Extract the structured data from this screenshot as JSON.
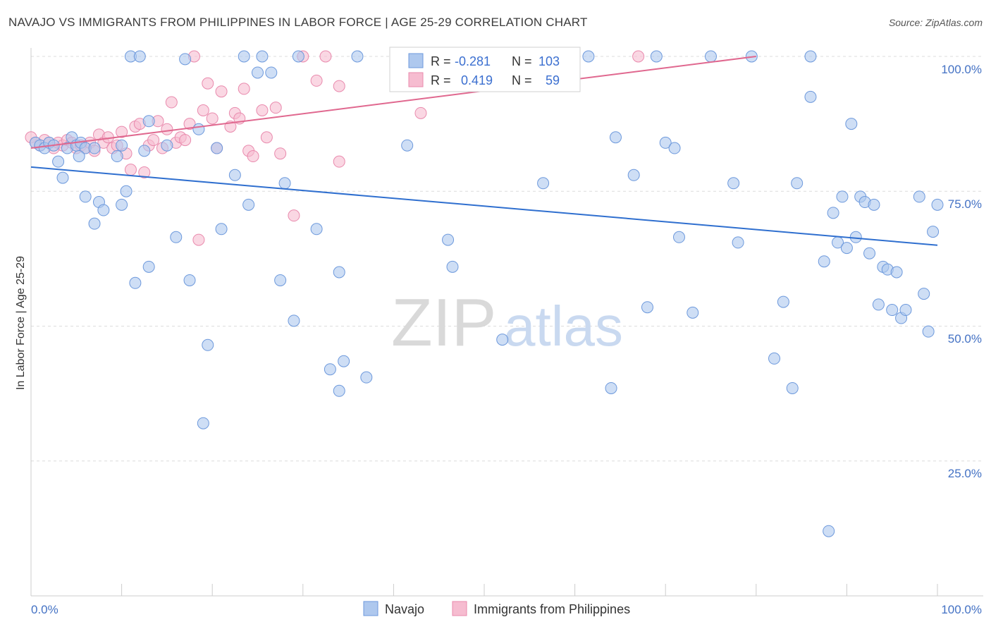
{
  "title": "NAVAJO VS IMMIGRANTS FROM PHILIPPINES IN LABOR FORCE | AGE 25-29 CORRELATION CHART",
  "source": "Source: ZipAtlas.com",
  "watermark": {
    "zip": "ZIP",
    "atlas": "atlas"
  },
  "colors": {
    "navajo_fill": "#aec8ee",
    "navajo_stroke": "#6d99dc",
    "navajo_line": "#2f6fcf",
    "phil_fill": "#f6bcd0",
    "phil_stroke": "#e98aad",
    "phil_line": "#e0688f",
    "tick_text": "#4472c4",
    "grid": "#dcdcdc"
  },
  "legend": {
    "navajo": {
      "r_label": "R =",
      "r_value": "-0.281",
      "n_label": "N =",
      "n_value": "103"
    },
    "philippines": {
      "r_label": "R =",
      "r_value": "0.419",
      "n_label": "N =",
      "n_value": "59"
    }
  },
  "chart_data": {
    "type": "scatter",
    "xlabel": "",
    "ylabel": "In Labor Force | Age 25-29",
    "xlim": [
      0,
      100
    ],
    "ylim": [
      0,
      100
    ],
    "x_tick_labels": [
      "0.0%",
      "100.0%"
    ],
    "y_tick_labels": [
      "100.0%",
      "75.0%",
      "50.0%",
      "25.0%"
    ],
    "y_ticks": [
      100,
      75,
      50,
      25
    ],
    "grid": "horizontal dashed",
    "legend_position": "top-center",
    "series": [
      {
        "name": "Navajo",
        "trend": {
          "x": [
            0,
            100
          ],
          "y": [
            79.5,
            65.0
          ]
        },
        "points": [
          [
            0.5,
            84
          ],
          [
            1,
            83.5
          ],
          [
            1.5,
            83
          ],
          [
            2,
            84
          ],
          [
            2.5,
            83.5
          ],
          [
            3,
            80.5
          ],
          [
            3.5,
            77.5
          ],
          [
            4,
            83
          ],
          [
            4.5,
            85
          ],
          [
            5,
            83.5
          ],
          [
            5.5,
            84
          ],
          [
            6,
            83
          ],
          [
            5.3,
            81.5
          ],
          [
            7,
            83
          ],
          [
            6,
            74
          ],
          [
            7.5,
            73
          ],
          [
            8,
            71.5
          ],
          [
            7,
            69
          ],
          [
            10,
            83.5
          ],
          [
            9.5,
            81.5
          ],
          [
            10,
            72.5
          ],
          [
            10.5,
            75
          ],
          [
            11,
            100
          ],
          [
            12,
            100
          ],
          [
            12.5,
            82.5
          ],
          [
            13,
            88
          ],
          [
            13,
            61
          ],
          [
            11.5,
            58
          ],
          [
            15,
            83.5
          ],
          [
            16,
            66.5
          ],
          [
            17,
            99.5
          ],
          [
            17.5,
            58.5
          ],
          [
            18.5,
            86.5
          ],
          [
            19,
            32
          ],
          [
            19.5,
            46.5
          ],
          [
            20.5,
            83
          ],
          [
            21,
            68
          ],
          [
            22.5,
            78
          ],
          [
            23.5,
            100
          ],
          [
            24,
            72.5
          ],
          [
            25,
            97
          ],
          [
            25.5,
            100
          ],
          [
            26.5,
            97
          ],
          [
            27.5,
            58.5
          ],
          [
            28,
            76.5
          ],
          [
            29,
            51
          ],
          [
            29.5,
            100
          ],
          [
            31.5,
            68
          ],
          [
            34,
            60
          ],
          [
            33,
            42
          ],
          [
            34,
            38
          ],
          [
            34.5,
            43.5
          ],
          [
            36,
            100
          ],
          [
            37,
            40.5
          ],
          [
            41.5,
            83.5
          ],
          [
            46,
            66
          ],
          [
            46.5,
            61
          ],
          [
            47,
            100
          ],
          [
            52,
            47.5
          ],
          [
            56.5,
            100
          ],
          [
            56.5,
            76.5
          ],
          [
            61.5,
            100
          ],
          [
            64,
            38.5
          ],
          [
            64.5,
            85
          ],
          [
            66.5,
            78
          ],
          [
            68,
            53.5
          ],
          [
            69,
            100
          ],
          [
            70,
            84
          ],
          [
            71,
            83
          ],
          [
            71.5,
            66.5
          ],
          [
            73,
            52.5
          ],
          [
            75,
            100
          ],
          [
            77.5,
            76.5
          ],
          [
            78,
            65.5
          ],
          [
            79.5,
            100
          ],
          [
            82,
            44
          ],
          [
            83,
            54.5
          ],
          [
            84,
            38.5
          ],
          [
            84.5,
            76.5
          ],
          [
            86,
            100
          ],
          [
            86,
            92.5
          ],
          [
            87.5,
            62
          ],
          [
            88,
            12
          ],
          [
            88.5,
            71
          ],
          [
            89,
            65.5
          ],
          [
            89.5,
            74
          ],
          [
            90,
            64.5
          ],
          [
            90.5,
            87.5
          ],
          [
            91,
            66.5
          ],
          [
            91.5,
            74
          ],
          [
            92,
            73
          ],
          [
            92.5,
            63.5
          ],
          [
            93,
            72.5
          ],
          [
            93.5,
            54
          ],
          [
            94,
            61
          ],
          [
            94.5,
            60.5
          ],
          [
            95,
            53
          ],
          [
            95.5,
            60
          ],
          [
            96,
            51.5
          ],
          [
            96.5,
            53
          ],
          [
            98,
            74
          ],
          [
            98.5,
            56
          ],
          [
            99,
            49
          ],
          [
            99.5,
            67.5
          ],
          [
            100,
            72.5
          ]
        ]
      },
      {
        "name": "Immigrants from Philippines",
        "trend": {
          "x": [
            0,
            80
          ],
          "y": [
            83.0,
            100.0
          ]
        },
        "points": [
          [
            0,
            85
          ],
          [
            0.5,
            84
          ],
          [
            1,
            83.5
          ],
          [
            1.5,
            84.5
          ],
          [
            2,
            84
          ],
          [
            2.5,
            83
          ],
          [
            3,
            84
          ],
          [
            3.5,
            83.5
          ],
          [
            4,
            84.5
          ],
          [
            4.5,
            84
          ],
          [
            5,
            83
          ],
          [
            5.5,
            83.5
          ],
          [
            6,
            83
          ],
          [
            6.5,
            84
          ],
          [
            7,
            82.5
          ],
          [
            7.5,
            85.5
          ],
          [
            8,
            84
          ],
          [
            8.5,
            85
          ],
          [
            9,
            83
          ],
          [
            9.5,
            83.5
          ],
          [
            10,
            86
          ],
          [
            10.5,
            82
          ],
          [
            11,
            79
          ],
          [
            11.5,
            87
          ],
          [
            12,
            87.5
          ],
          [
            12.5,
            78.5
          ],
          [
            13,
            83.5
          ],
          [
            13.5,
            84.5
          ],
          [
            14,
            88
          ],
          [
            14.5,
            83
          ],
          [
            15,
            86.5
          ],
          [
            15.5,
            91.5
          ],
          [
            16,
            84
          ],
          [
            16.5,
            85
          ],
          [
            17,
            84.5
          ],
          [
            17.5,
            87.5
          ],
          [
            18,
            100
          ],
          [
            18.5,
            66
          ],
          [
            19,
            90
          ],
          [
            19.5,
            95
          ],
          [
            20,
            88.5
          ],
          [
            20.5,
            83
          ],
          [
            21,
            93.5
          ],
          [
            22,
            87
          ],
          [
            22.5,
            89.5
          ],
          [
            23,
            88.5
          ],
          [
            23.5,
            94
          ],
          [
            24,
            82.5
          ],
          [
            24.5,
            81.5
          ],
          [
            25.5,
            90
          ],
          [
            26,
            85
          ],
          [
            27,
            90.5
          ],
          [
            27.5,
            82
          ],
          [
            29,
            70.5
          ],
          [
            30,
            100
          ],
          [
            31.5,
            95.5
          ],
          [
            32.5,
            100
          ],
          [
            34,
            80.5
          ],
          [
            34,
            94.5
          ],
          [
            43,
            89.5
          ],
          [
            67,
            100
          ]
        ]
      }
    ]
  },
  "bottom_legend": {
    "navajo": "Navajo",
    "philippines": "Immigrants from Philippines"
  }
}
